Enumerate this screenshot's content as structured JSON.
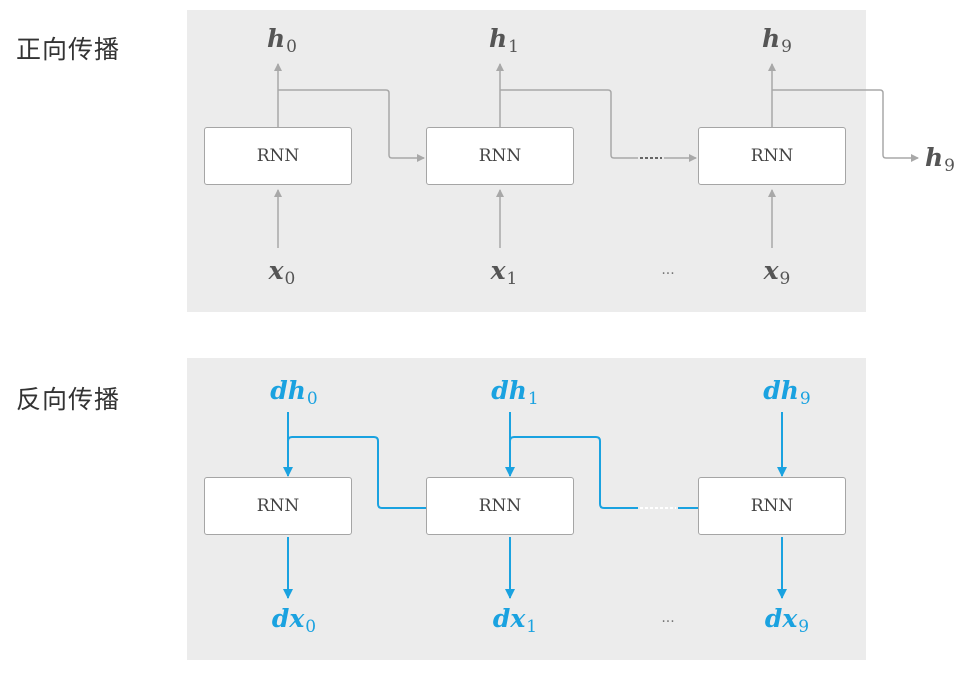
{
  "sections": {
    "forward": {
      "label": "正向传播",
      "boxes": [
        "RNN",
        "RNN",
        "RNN"
      ],
      "outputs": [
        {
          "base": "h",
          "sub": "0"
        },
        {
          "base": "h",
          "sub": "1"
        },
        {
          "base": "h",
          "sub": "9"
        }
      ],
      "inputs": [
        {
          "base": "x",
          "sub": "0"
        },
        {
          "base": "x",
          "sub": "1"
        },
        {
          "base": "x",
          "sub": "9"
        }
      ],
      "final_output": {
        "base": "h",
        "sub": "9"
      },
      "ellipsis": "···"
    },
    "backward": {
      "label": "反向传播",
      "boxes": [
        "RNN",
        "RNN",
        "RNN"
      ],
      "grad_inputs": [
        {
          "base": "dh",
          "sub": "0"
        },
        {
          "base": "dh",
          "sub": "1"
        },
        {
          "base": "dh",
          "sub": "9"
        }
      ],
      "grad_outputs": [
        {
          "base": "dx",
          "sub": "0"
        },
        {
          "base": "dx",
          "sub": "1"
        },
        {
          "base": "dx",
          "sub": "9"
        }
      ],
      "ellipsis": "···"
    }
  },
  "colors": {
    "forward_arrow": "#a8a8a8",
    "backward_arrow": "#1aa2e0",
    "panel_bg": "#ececec"
  }
}
